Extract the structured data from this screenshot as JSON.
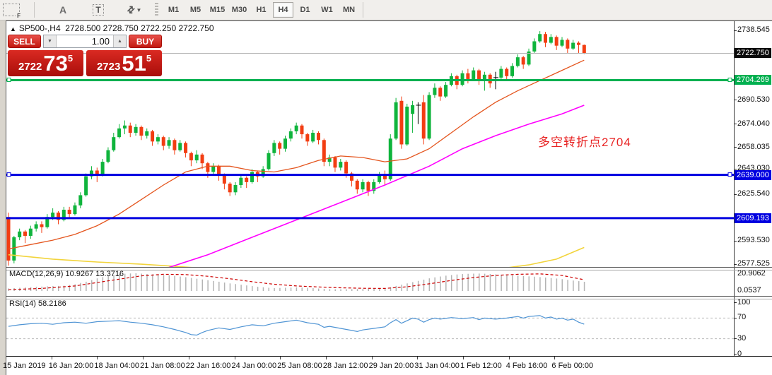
{
  "toolbar": {
    "f_icon_label": "F",
    "a_icon_label": "A",
    "t_icon_label": "T",
    "arrows_icon_glyph": "⇄",
    "caret_glyph": "▼",
    "timeframes": [
      "M1",
      "M5",
      "M15",
      "M30",
      "H1",
      "H4",
      "D1",
      "W1",
      "MN"
    ],
    "active_timeframe": "H4"
  },
  "chart_header": {
    "collapse_icon": "▲",
    "title": "SP500-,H4",
    "ohlc_text": "2728.500 2728.750 2722.250 2722.750"
  },
  "trade_panel": {
    "sell_label": "SELL",
    "buy_label": "BUY",
    "volume": "1.00",
    "spin_down": "▼",
    "spin_up": "▲",
    "sell_price": {
      "prefix": "2722",
      "big": "73",
      "sup": "5"
    },
    "buy_price": {
      "prefix": "2723",
      "big": "51",
      "sup": "5"
    }
  },
  "annotation": {
    "text": "多空转折点2704",
    "color": "#e82525"
  },
  "price_axis": {
    "plain_ticks": [
      {
        "value": 2738.545,
        "label": "2738.545"
      },
      {
        "value": 2690.53,
        "label": "2690.530"
      },
      {
        "value": 2674.04,
        "label": "2674.040"
      },
      {
        "value": 2658.035,
        "label": "2658.035"
      },
      {
        "value": 2643.03,
        "label": "2643.030"
      },
      {
        "value": 2625.54,
        "label": "2625.540"
      },
      {
        "value": 2593.53,
        "label": "2593.530"
      },
      {
        "value": 2577.525,
        "label": "2577.525"
      }
    ],
    "badges": [
      {
        "value": 2722.75,
        "label": "2722.750",
        "bg": "#0a0a0a"
      },
      {
        "value": 2704.269,
        "label": "2704.269",
        "bg": "#00b050"
      },
      {
        "value": 2639.0,
        "label": "2639.000",
        "bg": "#0000e0"
      },
      {
        "value": 2609.193,
        "label": "2609.193",
        "bg": "#0000e0"
      }
    ]
  },
  "macd_panel": {
    "label": "MACD(12,26,9) 10.9267 13.3716",
    "max_label": "20.9062",
    "min_label": "0.0537"
  },
  "rsi_panel": {
    "label": "RSI(14) 58.2186",
    "levels": [
      {
        "value": 100,
        "label": "100"
      },
      {
        "value": 70,
        "label": "70"
      },
      {
        "value": 30,
        "label": "30"
      },
      {
        "value": 0,
        "label": "0"
      }
    ]
  },
  "time_axis": [
    "15 Jan 2019",
    "16 Jan 20:00",
    "18 Jan 04:00",
    "21 Jan 08:00",
    "22 Jan 16:00",
    "24 Jan 00:00",
    "25 Jan 08:00",
    "28 Jan 12:00",
    "29 Jan 20:00",
    "31 Jan 04:00",
    "1 Feb 12:00",
    "4 Feb 16:00",
    "6 Feb 00:00"
  ],
  "chart_data": {
    "type": "candlestick",
    "symbol": "SP500-",
    "period": "H4",
    "colors": {
      "up": "#0fb43c",
      "down": "#f23d12",
      "doji": "#000000",
      "ma_fast": "#e4551e",
      "ma_slow": "#ff00ff",
      "ma_long": "#f2d43c",
      "current_price_line": "#b4b4b4",
      "green_level": "#00b050",
      "blue_level": "#0000e0",
      "macd_hist": "#b4b4b4",
      "macd_signal": "#cc0000",
      "rsi_line": "#4f94d4"
    },
    "y_axis": {
      "top_price": 2738.545,
      "bottom_price": 2577.525
    },
    "levels": [
      {
        "price": 2722.75,
        "color": "#b4b4b4",
        "width": 1,
        "markers": false
      },
      {
        "price": 2704.269,
        "color": "#00b050",
        "width": 3,
        "markers": true
      },
      {
        "price": 2639.0,
        "color": "#0000e0",
        "width": 3,
        "markers": true
      },
      {
        "price": 2609.193,
        "color": "#0000e0",
        "width": 3,
        "markers": false
      }
    ],
    "candles": [
      [
        2610,
        2613,
        2576.5,
        2580
      ],
      [
        2580,
        2597,
        2578,
        2596
      ],
      [
        2596,
        2602,
        2594,
        2600
      ],
      [
        2600,
        2601,
        2592,
        2597
      ],
      [
        2597,
        2604,
        2595,
        2602
      ],
      [
        2602,
        2607,
        2600,
        2605
      ],
      [
        2605,
        2607,
        2599,
        2603
      ],
      [
        2603,
        2612,
        2602,
        2610
      ],
      [
        2610,
        2616,
        2608,
        2613
      ],
      [
        2613,
        2614,
        2605,
        2608
      ],
      [
        2608,
        2617,
        2607,
        2615
      ],
      [
        2615,
        2617,
        2609,
        2612
      ],
      [
        2612,
        2620,
        2611,
        2618
      ],
      [
        2618,
        2627,
        2616,
        2625
      ],
      [
        2625,
        2640,
        2624,
        2638
      ],
      [
        2638,
        2645,
        2636,
        2642
      ],
      [
        2642,
        2644,
        2634,
        2639
      ],
      [
        2639,
        2650,
        2638,
        2648
      ],
      [
        2648,
        2658,
        2647,
        2656
      ],
      [
        2656,
        2668,
        2655,
        2665
      ],
      [
        2665,
        2674,
        2664,
        2671
      ],
      [
        2671,
        2676.5,
        2667,
        2673
      ],
      [
        2673,
        2675,
        2665,
        2668
      ],
      [
        2668,
        2674,
        2666,
        2672
      ],
      [
        2672,
        2673,
        2663,
        2666
      ],
      [
        2666,
        2671,
        2664,
        2669
      ],
      [
        2669,
        2670,
        2659,
        2662
      ],
      [
        2662,
        2667,
        2660,
        2665
      ],
      [
        2665,
        2666,
        2656,
        2659
      ],
      [
        2659,
        2665,
        2657,
        2663
      ],
      [
        2663,
        2664,
        2653,
        2656
      ],
      [
        2656,
        2663,
        2655,
        2661
      ],
      [
        2661,
        2662,
        2651,
        2654
      ],
      [
        2654,
        2655,
        2645,
        2649
      ],
      [
        2649,
        2656,
        2647,
        2653
      ],
      [
        2653,
        2654,
        2643,
        2647
      ],
      [
        2647,
        2648,
        2637,
        2641
      ],
      [
        2641,
        2647,
        2639,
        2645
      ],
      [
        2645,
        2646,
        2635,
        2639
      ],
      [
        2639,
        2640,
        2629,
        2633
      ],
      [
        2633,
        2634,
        2624.5,
        2627
      ],
      [
        2627,
        2634,
        2625,
        2632
      ],
      [
        2632,
        2639,
        2630,
        2637
      ],
      [
        2637,
        2638,
        2630,
        2634
      ],
      [
        2634,
        2643,
        2633,
        2641
      ],
      [
        2641,
        2642,
        2634,
        2638
      ],
      [
        2638,
        2645,
        2637,
        2643
      ],
      [
        2643,
        2656,
        2642,
        2654
      ],
      [
        2654,
        2663,
        2652,
        2661
      ],
      [
        2661,
        2662,
        2653,
        2657
      ],
      [
        2657,
        2666,
        2655,
        2664
      ],
      [
        2664,
        2671,
        2662,
        2669
      ],
      [
        2669,
        2675,
        2667,
        2673
      ],
      [
        2673,
        2674,
        2664,
        2667
      ],
      [
        2667,
        2668,
        2659,
        2662
      ],
      [
        2662,
        2670,
        2661,
        2668
      ],
      [
        2668,
        2669,
        2660,
        2663
      ],
      [
        2663,
        2664,
        2645,
        2648
      ],
      [
        2648,
        2653,
        2645,
        2651
      ],
      [
        2651,
        2652,
        2641,
        2644
      ],
      [
        2644,
        2650,
        2642,
        2648
      ],
      [
        2648,
        2649,
        2637,
        2640
      ],
      [
        2640,
        2641,
        2631,
        2635
      ],
      [
        2635,
        2636,
        2626,
        2629
      ],
      [
        2629,
        2636,
        2627,
        2634
      ],
      [
        2634,
        2635,
        2624.5,
        2628
      ],
      [
        2628,
        2636,
        2626,
        2634
      ],
      [
        2634,
        2641,
        2633,
        2639
      ],
      [
        2639,
        2642,
        2632,
        2636
      ],
      [
        2636,
        2667,
        2635,
        2664
      ],
      [
        2664,
        2692,
        2663,
        2689
      ],
      [
        2690,
        2693,
        2657,
        2660
      ],
      [
        2660,
        2688,
        2659,
        2686
      ],
      [
        2681,
        2690,
        2668,
        2687
      ],
      [
        2687,
        2689,
        2674,
        2687
      ],
      [
        2689,
        2694,
        2660,
        2664
      ],
      [
        2664,
        2696,
        2663,
        2694
      ],
      [
        2694,
        2702,
        2692,
        2699
      ],
      [
        2699,
        2700,
        2690,
        2693
      ],
      [
        2693,
        2703,
        2692,
        2701
      ],
      [
        2701,
        2709,
        2700,
        2707
      ],
      [
        2707,
        2708,
        2698,
        2701
      ],
      [
        2701,
        2711,
        2700,
        2709
      ],
      [
        2709,
        2712,
        2702,
        2705
      ],
      [
        2705,
        2713,
        2704,
        2711
      ],
      [
        2711,
        2712,
        2701,
        2704
      ],
      [
        2704,
        2710,
        2697,
        2708
      ],
      [
        2708,
        2709,
        2699,
        2702
      ],
      [
        2706,
        2710,
        2698,
        2706
      ],
      [
        2706,
        2714,
        2705,
        2712
      ],
      [
        2712,
        2713,
        2704,
        2707
      ],
      [
        2707,
        2716,
        2706,
        2714
      ],
      [
        2714,
        2722,
        2713,
        2720
      ],
      [
        2720,
        2721,
        2712,
        2715
      ],
      [
        2715,
        2726,
        2714,
        2724
      ],
      [
        2724,
        2733,
        2723,
        2731
      ],
      [
        2731,
        2738,
        2730,
        2736
      ],
      [
        2736,
        2737.5,
        2727,
        2730
      ],
      [
        2730,
        2736,
        2729,
        2734
      ],
      [
        2734,
        2735,
        2725,
        2728
      ],
      [
        2728,
        2734,
        2727,
        2732
      ],
      [
        2732,
        2733,
        2723,
        2726
      ],
      [
        2726,
        2732,
        2725,
        2730
      ],
      [
        2730,
        2731,
        2723,
        2728.5
      ],
      [
        2728.5,
        2728.75,
        2722.25,
        2722.75
      ]
    ],
    "ma_fast_points": [
      [
        0,
        2588
      ],
      [
        4,
        2591
      ],
      [
        8,
        2594
      ],
      [
        12,
        2598
      ],
      [
        16,
        2604
      ],
      [
        20,
        2612
      ],
      [
        24,
        2622
      ],
      [
        28,
        2632
      ],
      [
        32,
        2641
      ],
      [
        36,
        2645
      ],
      [
        40,
        2645
      ],
      [
        44,
        2642
      ],
      [
        48,
        2641
      ],
      [
        52,
        2644
      ],
      [
        56,
        2649
      ],
      [
        60,
        2652
      ],
      [
        64,
        2651
      ],
      [
        68,
        2648
      ],
      [
        72,
        2650
      ],
      [
        76,
        2657
      ],
      [
        80,
        2668
      ],
      [
        84,
        2679
      ],
      [
        88,
        2689
      ],
      [
        92,
        2697
      ],
      [
        96,
        2704
      ],
      [
        100,
        2711
      ],
      [
        104,
        2718
      ]
    ],
    "ma_slow_points": [
      [
        28,
        2574
      ],
      [
        36,
        2584
      ],
      [
        44,
        2596
      ],
      [
        52,
        2608
      ],
      [
        60,
        2620
      ],
      [
        68,
        2632
      ],
      [
        76,
        2645
      ],
      [
        82,
        2657
      ],
      [
        88,
        2666
      ],
      [
        94,
        2674
      ],
      [
        100,
        2681
      ],
      [
        104,
        2687
      ]
    ],
    "ma_long_points": [
      [
        0,
        2584
      ],
      [
        8,
        2581
      ],
      [
        16,
        2579
      ],
      [
        24,
        2577.5
      ],
      [
        30,
        2576
      ],
      [
        40,
        2573.5
      ],
      [
        55,
        2570.5
      ],
      [
        70,
        2570
      ],
      [
        80,
        2571.5
      ],
      [
        88,
        2574
      ],
      [
        94,
        2577
      ],
      [
        99,
        2581
      ],
      [
        104,
        2589
      ]
    ],
    "macd": {
      "value": 10.9267,
      "signal_value": 13.3716,
      "scale_max": 20.9062,
      "scale_min": 0.0537,
      "histogram": [
        3.0,
        3.4,
        3.8,
        4.2,
        4.6,
        5.0,
        5.2,
        5.5,
        5.8,
        6.0,
        6.3,
        7.0,
        8.0,
        9.5,
        11.0,
        13.0,
        15.0,
        16.5,
        18.0,
        19.2,
        20.0,
        20.5,
        20.8,
        21.0,
        20.6,
        20.2,
        19.8,
        19.4,
        19.0,
        18.5,
        18.0,
        17.2,
        16.4,
        15.5,
        14.6,
        13.7,
        12.8,
        11.9,
        11.0,
        10.0,
        9.0,
        8.2,
        7.4,
        6.6,
        5.8,
        5.0,
        4.4,
        3.8,
        3.4,
        3.6,
        3.8,
        4.0,
        4.2,
        4.0,
        3.7,
        3.3,
        2.9,
        2.5,
        2.2,
        2.0,
        2.0,
        2.1,
        2.2,
        2.3,
        2.4,
        2.5,
        2.7,
        3.0,
        3.4,
        4.5,
        6.0,
        7.5,
        9.0,
        10.5,
        12.0,
        13.5,
        15.0,
        16.2,
        17.2,
        18.2,
        19.0,
        19.6,
        20.1,
        20.4,
        20.6,
        20.7,
        20.5,
        20.2,
        19.8,
        19.4,
        19.0,
        18.6,
        18.2,
        17.8,
        17.4,
        17.0,
        16.5,
        16.0,
        15.4,
        14.8,
        14.0,
        13.2,
        12.4,
        11.7,
        10.9267
      ],
      "signal_points": [
        [
          0,
          1.5
        ],
        [
          6,
          3
        ],
        [
          12,
          6
        ],
        [
          18,
          12
        ],
        [
          24,
          18
        ],
        [
          28,
          19.8
        ],
        [
          32,
          19.5
        ],
        [
          36,
          17.5
        ],
        [
          40,
          14.5
        ],
        [
          44,
          11
        ],
        [
          48,
          8
        ],
        [
          52,
          6
        ],
        [
          56,
          4.8
        ],
        [
          60,
          3.8
        ],
        [
          64,
          3.2
        ],
        [
          68,
          3.0
        ],
        [
          72,
          5
        ],
        [
          76,
          8.5
        ],
        [
          80,
          12.5
        ],
        [
          84,
          16
        ],
        [
          88,
          18.5
        ],
        [
          92,
          19.8
        ],
        [
          96,
          20.3
        ],
        [
          100,
          18.5
        ],
        [
          104,
          13.3716
        ]
      ]
    },
    "rsi": {
      "value": 58.2186,
      "points": [
        [
          0,
          54
        ],
        [
          2,
          57
        ],
        [
          4,
          59
        ],
        [
          6,
          60
        ],
        [
          8,
          58
        ],
        [
          10,
          61
        ],
        [
          12,
          62
        ],
        [
          14,
          60
        ],
        [
          16,
          63
        ],
        [
          18,
          64
        ],
        [
          20,
          65
        ],
        [
          22,
          62
        ],
        [
          24,
          60
        ],
        [
          26,
          57
        ],
        [
          28,
          53
        ],
        [
          30,
          48
        ],
        [
          32,
          42
        ],
        [
          33,
          38
        ],
        [
          34,
          37
        ],
        [
          35,
          42
        ],
        [
          36,
          46
        ],
        [
          38,
          51
        ],
        [
          40,
          48
        ],
        [
          42,
          53
        ],
        [
          44,
          57
        ],
        [
          46,
          55
        ],
        [
          48,
          60
        ],
        [
          50,
          63
        ],
        [
          52,
          66
        ],
        [
          54,
          61
        ],
        [
          56,
          58
        ],
        [
          57,
          52
        ],
        [
          58,
          54
        ],
        [
          60,
          50
        ],
        [
          62,
          46
        ],
        [
          63,
          44
        ],
        [
          64,
          47
        ],
        [
          66,
          50
        ],
        [
          68,
          53
        ],
        [
          69,
          61
        ],
        [
          70,
          67
        ],
        [
          71,
          60
        ],
        [
          72,
          65
        ],
        [
          73,
          70
        ],
        [
          74,
          68
        ],
        [
          75,
          62
        ],
        [
          76,
          67
        ],
        [
          77,
          70
        ],
        [
          78,
          68
        ],
        [
          80,
          71
        ],
        [
          82,
          69
        ],
        [
          84,
          71
        ],
        [
          85,
          67
        ],
        [
          86,
          70
        ],
        [
          88,
          68
        ],
        [
          90,
          70
        ],
        [
          92,
          73
        ],
        [
          93,
          70
        ],
        [
          94,
          73
        ],
        [
          95,
          74
        ],
        [
          96,
          75
        ],
        [
          97,
          70
        ],
        [
          98,
          72
        ],
        [
          99,
          68
        ],
        [
          100,
          70
        ],
        [
          101,
          66
        ],
        [
          102,
          68
        ],
        [
          103,
          62
        ],
        [
          104,
          58.2
        ]
      ]
    }
  }
}
